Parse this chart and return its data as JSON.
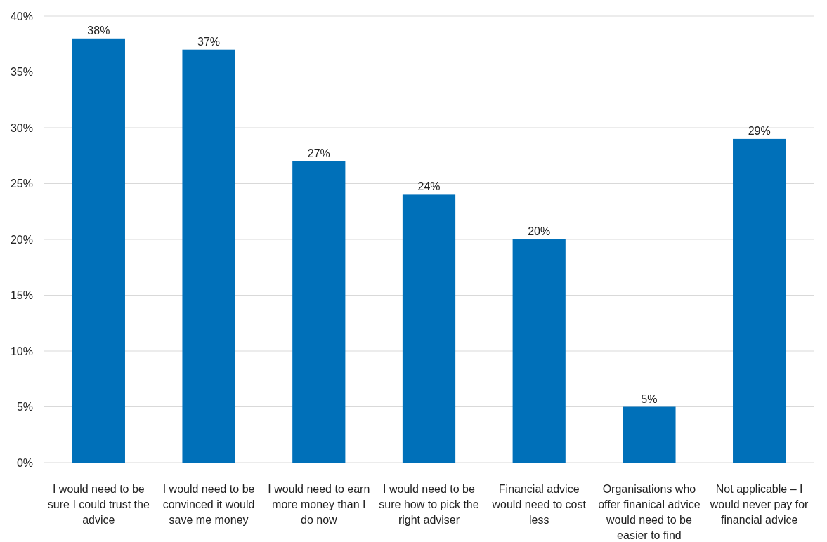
{
  "chart_data": {
    "type": "bar",
    "categories": [
      "I would need to be sure I could trust the advice",
      "I would need to be convinced it would save me money",
      "I would need to earn more money than I do now",
      "I would need to be sure how to pick the right adviser",
      "Financial advice would need to cost less",
      "Organisations who offer finanical advice would need to be easier to find",
      "Not applicable – I would never pay for financial advice"
    ],
    "values": [
      38,
      37,
      27,
      24,
      20,
      5,
      29
    ],
    "value_labels": [
      "38%",
      "37%",
      "27%",
      "24%",
      "20%",
      "5%",
      "29%"
    ],
    "color": "#0070b9",
    "ylim": [
      0,
      40
    ],
    "yticks": [
      {
        "value": 0,
        "label": "0%"
      },
      {
        "value": 5,
        "label": "5%"
      },
      {
        "value": 10,
        "label": "10%"
      },
      {
        "value": 15,
        "label": "15%"
      },
      {
        "value": 20,
        "label": "20%"
      },
      {
        "value": 25,
        "label": "25%"
      },
      {
        "value": 30,
        "label": "30%"
      },
      {
        "value": 35,
        "label": "35%"
      },
      {
        "value": 40,
        "label": "40%"
      }
    ],
    "grid": "y"
  }
}
